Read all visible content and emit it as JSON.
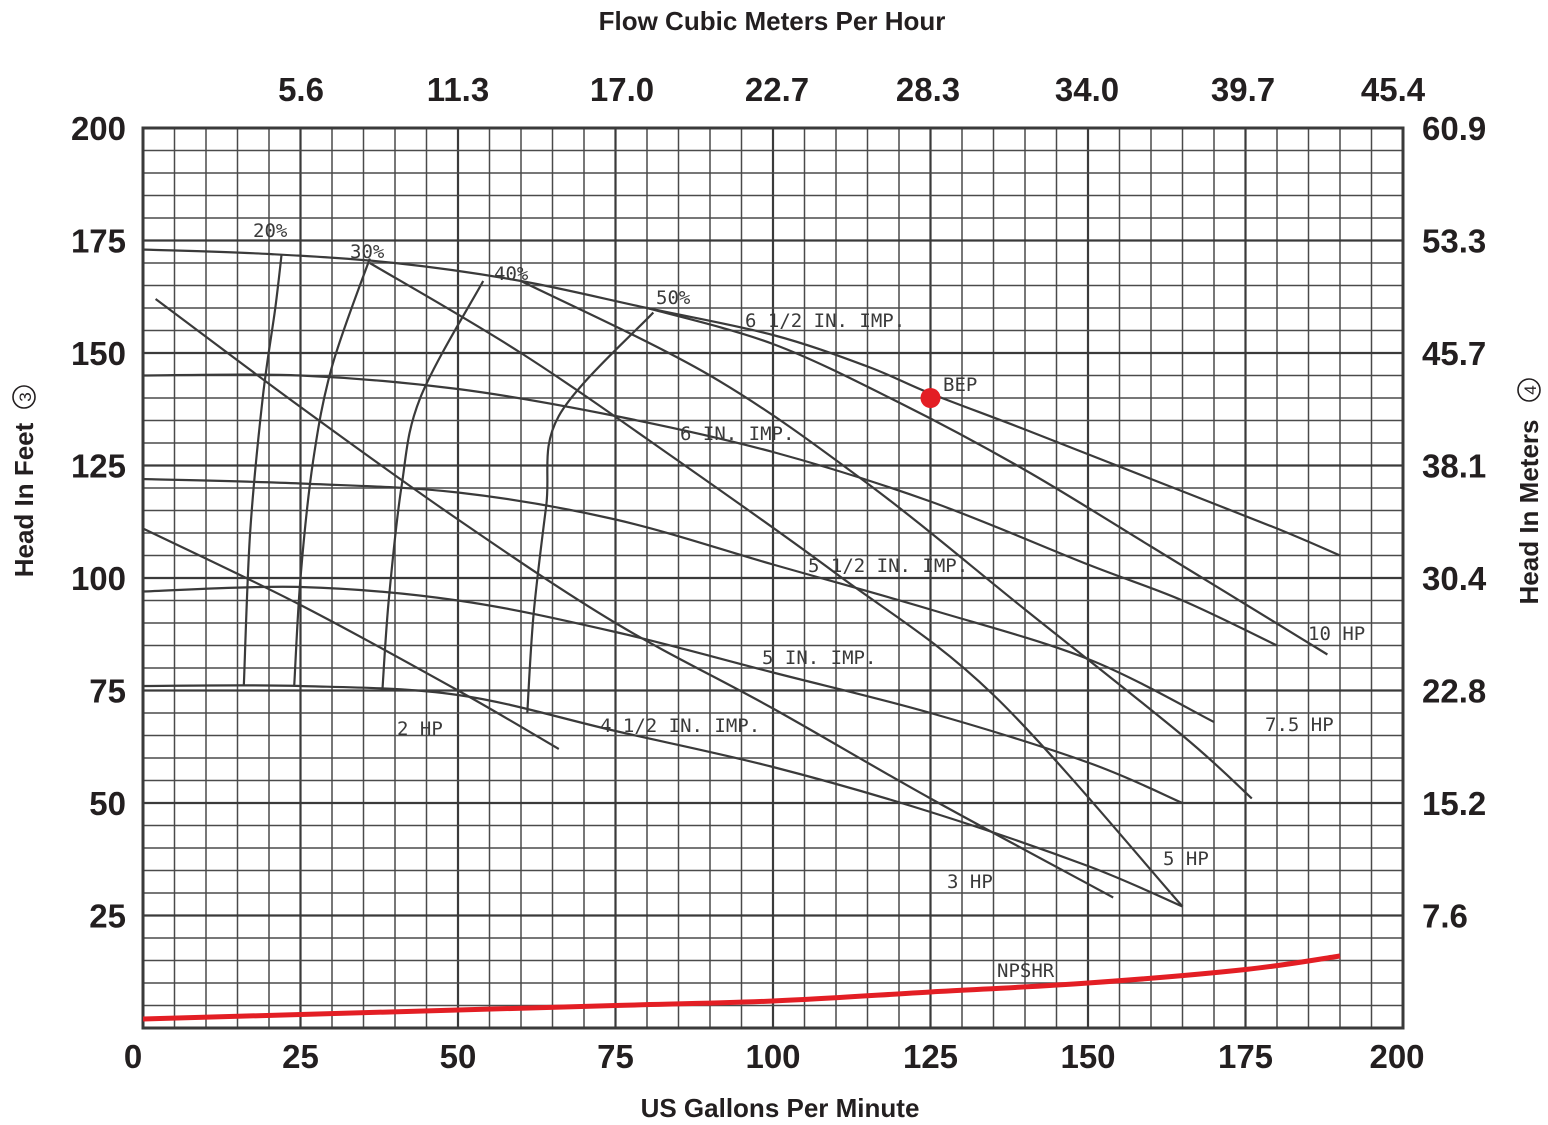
{
  "chart_data": {
    "type": "line",
    "title": "Flow Cubic Meters Per Hour",
    "xlabel": "US Gallons Per Minute",
    "ylabel": "Head In Feet",
    "ylabel_mark": "3",
    "y2label": "Head In Meters",
    "y2label_mark": "4",
    "xlim": [
      0,
      200
    ],
    "ylim": [
      0,
      200
    ],
    "grid": true,
    "x_ticks": [
      "0",
      "25",
      "50",
      "75",
      "100",
      "125",
      "150",
      "175",
      "200"
    ],
    "y_ticks": [
      "200",
      "175",
      "150",
      "125",
      "100",
      "75",
      "50",
      "25"
    ],
    "x2_ticks": [
      "5.6",
      "11.3",
      "17.0",
      "22.7",
      "28.3",
      "34.0",
      "39.7",
      "45.4"
    ],
    "y2_ticks": [
      "60.9",
      "53.3",
      "45.7",
      "38.1",
      "30.4",
      "22.8",
      "15.2",
      "7.6"
    ],
    "impeller_curves": [
      {
        "name": "6 1/2 IN. IMP.",
        "x": [
          0,
          20,
          40,
          60,
          80,
          100,
          115,
          125,
          140,
          160,
          180,
          190
        ],
        "y": [
          173,
          172,
          170,
          166,
          160,
          154,
          147,
          141,
          133,
          122,
          111,
          105
        ]
      },
      {
        "name": "6 IN. IMP.",
        "x": [
          0,
          25,
          50,
          75,
          100,
          125,
          150,
          165,
          180
        ],
        "y": [
          145,
          145,
          142,
          136,
          128,
          117,
          103,
          95,
          85
        ]
      },
      {
        "name": "5 1/2 IN. IMP.",
        "x": [
          0,
          25,
          50,
          75,
          100,
          125,
          150,
          170
        ],
        "y": [
          122,
          121,
          119,
          113,
          103,
          93,
          82,
          68
        ]
      },
      {
        "name": "5 IN. IMP.",
        "x": [
          0,
          25,
          50,
          75,
          100,
          125,
          150,
          165
        ],
        "y": [
          97,
          98,
          95,
          88,
          79,
          70,
          59,
          50
        ]
      },
      {
        "name": "4 1/2 IN. IMP.",
        "x": [
          0,
          25,
          50,
          75,
          100,
          125,
          150,
          165
        ],
        "y": [
          76,
          76,
          74,
          66,
          58,
          48,
          36,
          27
        ]
      }
    ],
    "horsepower_curves": [
      {
        "name": "2 HP",
        "x": [
          0,
          25,
          50,
          66
        ],
        "y": [
          111,
          94,
          75,
          62
        ]
      },
      {
        "name": "3 HP",
        "x": [
          2,
          25,
          50,
          75,
          100,
          125,
          154
        ],
        "y": [
          162,
          138,
          113,
          90,
          71,
          51,
          29
        ]
      },
      {
        "name": "5 HP",
        "x": [
          36,
          60,
          85,
          110,
          135,
          165
        ],
        "y": [
          170,
          150,
          126,
          101,
          74,
          27
        ]
      },
      {
        "name": "7.5 HP",
        "x": [
          60,
          90,
          115,
          140,
          165,
          176
        ],
        "y": [
          166,
          145,
          121,
          93,
          65,
          51
        ]
      },
      {
        "name": "10 HP",
        "x": [
          80,
          100,
          120,
          140,
          160,
          188
        ],
        "y": [
          160,
          152,
          139,
          124,
          107,
          83
        ]
      }
    ],
    "efficiency_curves": [
      {
        "name": "20%",
        "x": [
          22,
          21,
          19,
          17,
          16
        ],
        "y": [
          172,
          160,
          140,
          110,
          76
        ]
      },
      {
        "name": "30%",
        "x": [
          36,
          30,
          27,
          25,
          24
        ],
        "y": [
          171,
          147,
          126,
          100,
          76
        ]
      },
      {
        "name": "40%",
        "x": [
          54,
          44,
          41,
          39,
          38
        ],
        "y": [
          166,
          140,
          120,
          95,
          75
        ]
      },
      {
        "name": "50%",
        "x": [
          81,
          66,
          64,
          62,
          61
        ],
        "y": [
          159,
          136,
          116,
          92,
          70
        ]
      }
    ],
    "bep": {
      "label": "BEP",
      "x": 125,
      "y": 140
    },
    "npshr": {
      "name": "NPSHR",
      "x": [
        0,
        25,
        50,
        75,
        100,
        125,
        150,
        175,
        190
      ],
      "y": [
        2,
        3,
        4,
        5,
        6,
        8,
        10,
        13,
        16
      ]
    },
    "colors": {
      "npshr": "#e31e24",
      "bep": "#e31e24",
      "grid": "#4a4a4a",
      "curves": "#3a3a3a",
      "text": "#231f20"
    }
  }
}
